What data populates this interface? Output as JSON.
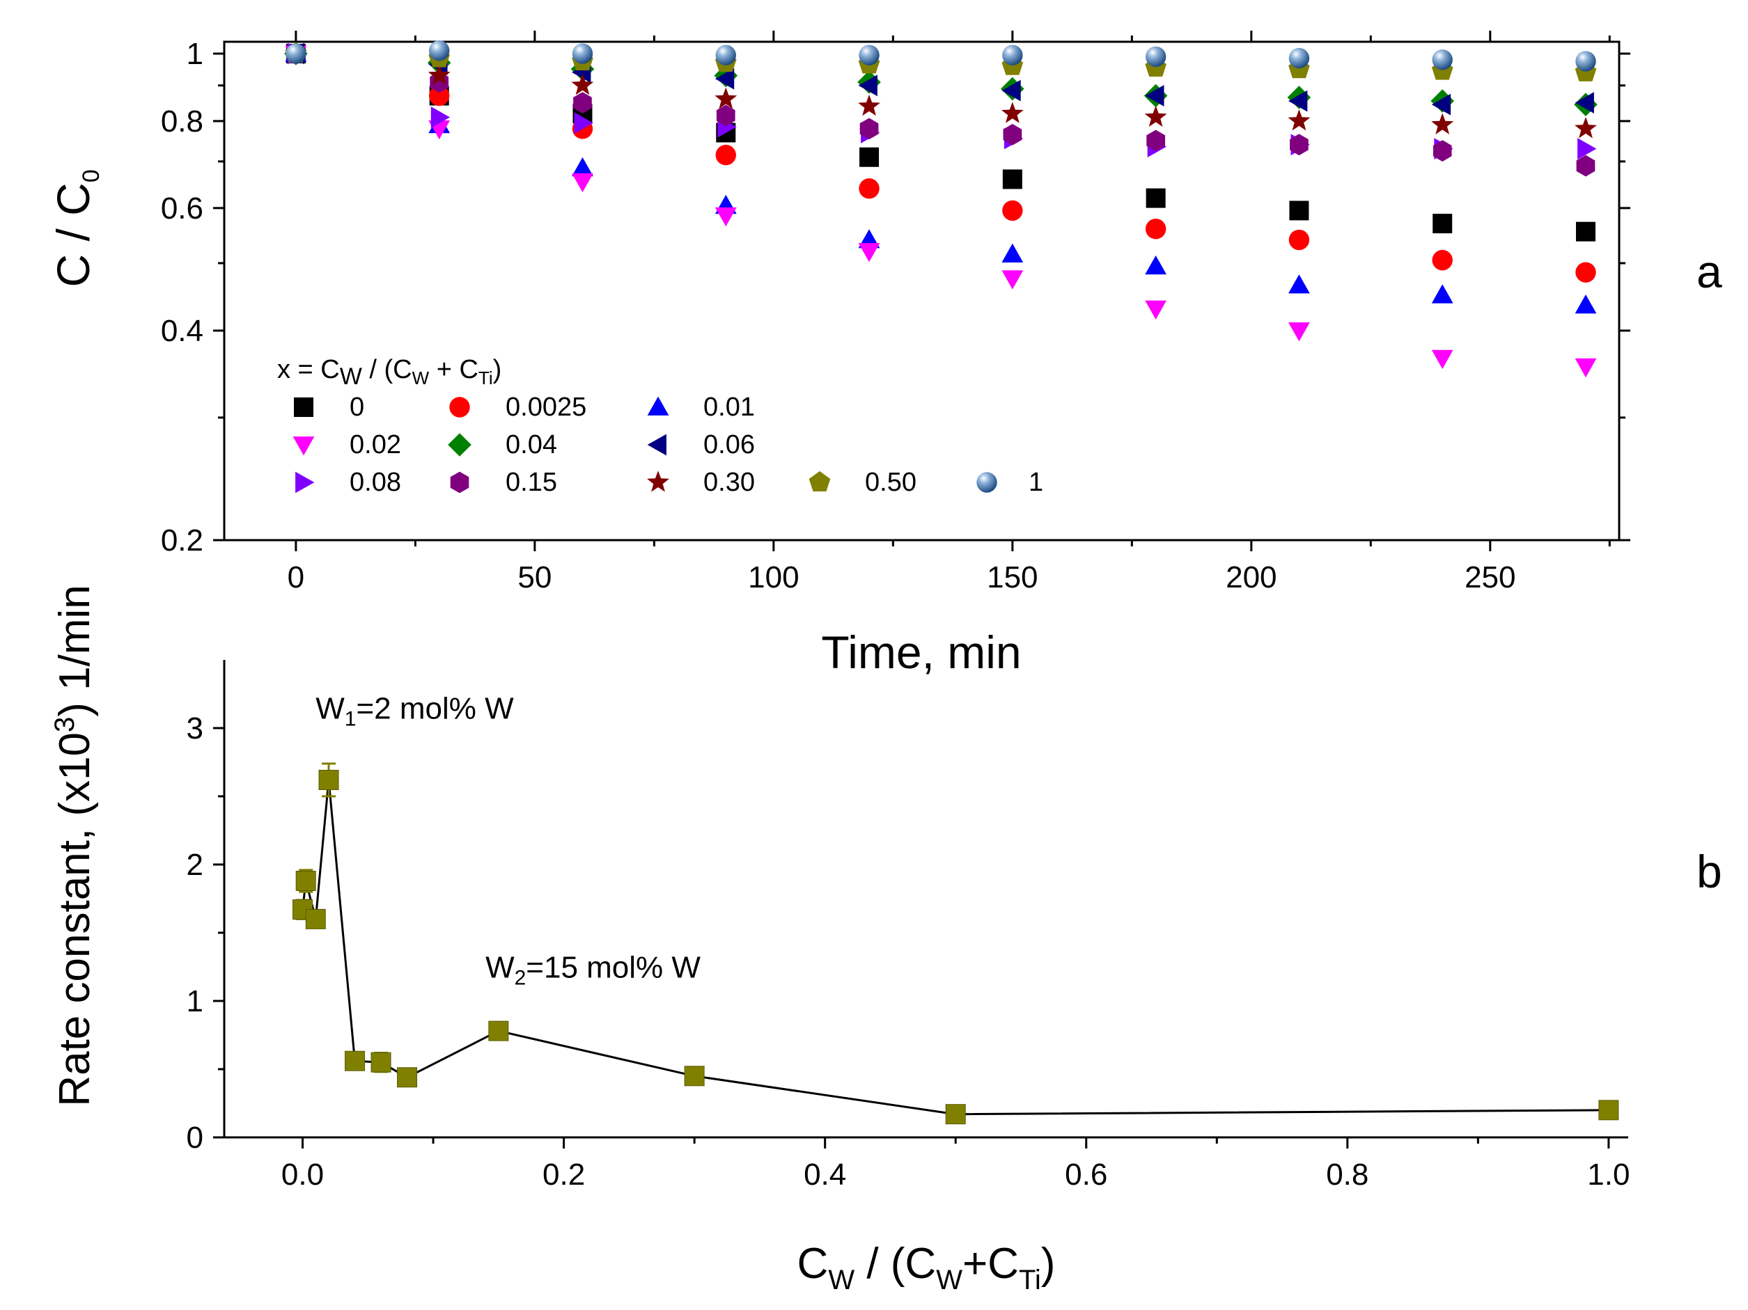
{
  "chart_data": [
    {
      "id": "a",
      "type": "scatter",
      "panel_label": "a",
      "xlabel": "Time, min",
      "ylabel": {
        "main": "C / C",
        "sub": "0"
      },
      "yscale": "log",
      "xlim": [
        -15,
        277
      ],
      "ylim": [
        0.2,
        1.04
      ],
      "x_ticks": [
        "0",
        "50",
        "100",
        "150",
        "200",
        "250"
      ],
      "y_ticks": [
        "0.2",
        "0.4",
        "0.6",
        "0.8",
        "1"
      ],
      "x": [
        0,
        30,
        60,
        90,
        120,
        150,
        180,
        210,
        240,
        270
      ],
      "legend": {
        "title": {
          "p1": "x = C",
          "s1": "W",
          "p2": " / (C",
          "s2": "W",
          "p3": " + C",
          "s3": "Ti",
          "p4": ")"
        },
        "position": "lower-left"
      },
      "series": [
        {
          "name": "0",
          "marker": "square",
          "color": "#000000",
          "values": [
            1.0,
            0.87,
            0.82,
            0.77,
            0.71,
            0.66,
            0.62,
            0.595,
            0.57,
            0.555
          ]
        },
        {
          "name": "0.0025",
          "marker": "circle",
          "color": "#ff0000",
          "values": [
            1.0,
            0.87,
            0.78,
            0.715,
            0.64,
            0.595,
            0.56,
            0.54,
            0.505,
            0.485
          ]
        },
        {
          "name": "0.01",
          "marker": "triangle-up",
          "color": "#0000ff",
          "values": [
            1.0,
            0.79,
            0.685,
            0.605,
            0.54,
            0.515,
            0.495,
            0.465,
            0.45,
            0.435
          ]
        },
        {
          "name": "0.02",
          "marker": "triangle-down",
          "color": "#ff00ff",
          "values": [
            1.0,
            0.78,
            0.655,
            0.585,
            0.52,
            0.475,
            0.43,
            0.4,
            0.365,
            0.355
          ]
        },
        {
          "name": "0.04",
          "marker": "diamond",
          "color": "#008000",
          "values": [
            1.0,
            0.97,
            0.95,
            0.93,
            0.91,
            0.89,
            0.87,
            0.865,
            0.855,
            0.845
          ]
        },
        {
          "name": "0.06",
          "marker": "triangle-left",
          "color": "#000080",
          "values": [
            1.0,
            0.965,
            0.94,
            0.92,
            0.9,
            0.885,
            0.87,
            0.855,
            0.845,
            0.85
          ]
        },
        {
          "name": "0.08",
          "marker": "triangle-right",
          "color": "#8000ff",
          "values": [
            1.0,
            0.81,
            0.795,
            0.785,
            0.77,
            0.755,
            0.735,
            0.74,
            0.73,
            0.73
          ]
        },
        {
          "name": "0.15",
          "marker": "hexagon",
          "color": "#800080",
          "values": [
            1.0,
            0.91,
            0.85,
            0.815,
            0.78,
            0.765,
            0.75,
            0.74,
            0.725,
            0.69
          ]
        },
        {
          "name": "0.30",
          "marker": "star",
          "color": "#800000",
          "values": [
            1.0,
            0.93,
            0.9,
            0.86,
            0.84,
            0.82,
            0.81,
            0.8,
            0.79,
            0.78
          ]
        },
        {
          "name": "0.50",
          "marker": "pentagon",
          "color": "#808000",
          "values": [
            1.0,
            0.985,
            0.975,
            0.97,
            0.965,
            0.96,
            0.955,
            0.95,
            0.945,
            0.94
          ]
        },
        {
          "name": "1",
          "marker": "sphere",
          "color": "#2f5f9a",
          "values": [
            1.0,
            1.01,
            1.0,
            0.995,
            0.995,
            0.995,
            0.99,
            0.985,
            0.98,
            0.975
          ]
        }
      ]
    },
    {
      "id": "b",
      "type": "line",
      "panel_label": "b",
      "xlabel": {
        "p1": "C",
        "s1": "W",
        "p2": " / (C",
        "s2": "W",
        "p3": "+C",
        "s3": "Ti",
        "p4": ")"
      },
      "ylabel": {
        "p1": "Rate constant,  (x10",
        "sup": "3",
        "p2": ")  1/min"
      },
      "xlim": [
        -0.06,
        1.015
      ],
      "ylim": [
        0,
        3.5
      ],
      "x_ticks": [
        "0.0",
        "0.2",
        "0.4",
        "0.6",
        "0.8",
        "1.0"
      ],
      "y_ticks": [
        "0",
        "1",
        "2",
        "3"
      ],
      "marker": "square",
      "color": "#808000",
      "points": [
        {
          "x": 0.0,
          "y": 1.67,
          "err": 0.07
        },
        {
          "x": 0.0025,
          "y": 1.88,
          "err": 0.08
        },
        {
          "x": 0.01,
          "y": 1.6,
          "err": 0.05
        },
        {
          "x": 0.02,
          "y": 2.62,
          "err": 0.12
        },
        {
          "x": 0.04,
          "y": 0.56,
          "err": 0.03
        },
        {
          "x": 0.06,
          "y": 0.55,
          "err": 0.07
        },
        {
          "x": 0.08,
          "y": 0.44,
          "err": 0.04
        },
        {
          "x": 0.15,
          "y": 0.78,
          "err": 0.04
        },
        {
          "x": 0.3,
          "y": 0.45,
          "err": 0.03
        },
        {
          "x": 0.5,
          "y": 0.17,
          "err": 0.02
        },
        {
          "x": 1.0,
          "y": 0.2,
          "err": 0.02
        }
      ],
      "annotations": [
        {
          "p1": "W",
          "sub": "1",
          "p2": "=2 mol% W",
          "x": 0.01,
          "y": 3.07
        },
        {
          "p1": "W",
          "sub": "2",
          "p2": "=15 mol% W",
          "x": 0.14,
          "y": 1.17
        }
      ]
    }
  ]
}
